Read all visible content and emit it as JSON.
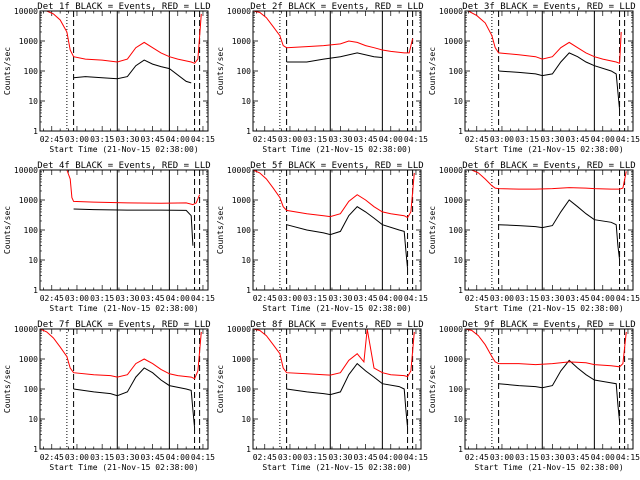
{
  "figure": {
    "xlabel": "Start Time (21-Nov-15 02:38:00)",
    "ylabel": "Counts/sec",
    "x_tick_labels": [
      "02:45",
      "03:00",
      "03:15",
      "03:30",
      "03:45",
      "04:00",
      "04:15"
    ],
    "y_tick_labels": [
      "1",
      "10",
      "100",
      "1000",
      "10000"
    ],
    "colors": {
      "events": "#000000",
      "lld": "#ff0000",
      "axes": "#000000",
      "background": "#ffffff"
    }
  },
  "chart_data": [
    {
      "type": "line",
      "title": "Det 1f BLACK = Events, RED = LLD",
      "xlabel": "Start Time (21-Nov-15 02:38:00)",
      "ylabel": "Counts/sec",
      "x_range": [
        "02:38",
        "04:18"
      ],
      "ylim": [
        1,
        10000
      ],
      "y_scale": "log",
      "vlines": {
        "dotted": [
          "02:54"
        ],
        "dashed": [
          "02:58",
          "04:10",
          "04:13"
        ],
        "solid": [
          "03:24",
          "03:55"
        ]
      },
      "series": [
        {
          "name": "BLACK = Events",
          "color": "#000000",
          "x": [
            "02:58",
            "03:05",
            "03:15",
            "03:24",
            "03:30",
            "03:35",
            "03:40",
            "03:45",
            "03:50",
            "03:55",
            "04:05",
            "04:08"
          ],
          "y": [
            60,
            65,
            60,
            55,
            65,
            150,
            230,
            170,
            140,
            120,
            45,
            40
          ]
        },
        {
          "name": "RED = LLD",
          "color": "#ff0000",
          "x": [
            "02:38",
            "02:42",
            "02:46",
            "02:50",
            "02:54",
            "02:56",
            "02:58",
            "03:05",
            "03:15",
            "03:24",
            "03:30",
            "03:35",
            "03:40",
            "03:45",
            "03:50",
            "03:55",
            "04:00",
            "04:08",
            "04:10",
            "04:12",
            "04:14"
          ],
          "y": [
            10000,
            10000,
            8000,
            5000,
            2000,
            500,
            300,
            250,
            230,
            200,
            250,
            600,
            900,
            600,
            400,
            300,
            250,
            200,
            180,
            250,
            8000
          ]
        }
      ]
    },
    {
      "type": "line",
      "title": "Det 2f BLACK = Events, RED = LLD",
      "xlabel": "Start Time (21-Nov-15 02:38:00)",
      "ylabel": "Counts/sec",
      "x_range": [
        "02:38",
        "04:18"
      ],
      "ylim": [
        1,
        10000
      ],
      "y_scale": "log",
      "vlines": {
        "dotted": [
          "02:54"
        ],
        "dashed": [
          "02:58",
          "04:10",
          "04:13"
        ],
        "solid": [
          "03:24",
          "03:55"
        ]
      },
      "series": [
        {
          "name": "BLACK = Events",
          "color": "#000000",
          "x": [
            "02:58",
            "03:10",
            "03:20",
            "03:30",
            "03:40",
            "03:50",
            "03:55"
          ],
          "y": [
            200,
            200,
            250,
            300,
            400,
            300,
            280
          ]
        },
        {
          "name": "RED = LLD",
          "color": "#ff0000",
          "x": [
            "02:38",
            "02:42",
            "02:46",
            "02:50",
            "02:54",
            "02:56",
            "02:58",
            "03:10",
            "03:20",
            "03:30",
            "03:35",
            "03:40",
            "03:45",
            "03:50",
            "03:55",
            "04:00",
            "04:08",
            "04:11",
            "04:13"
          ],
          "y": [
            10000,
            9000,
            6000,
            3000,
            1500,
            700,
            600,
            650,
            700,
            800,
            1000,
            900,
            700,
            600,
            500,
            450,
            400,
            400,
            1200
          ]
        }
      ]
    },
    {
      "type": "line",
      "title": "Det 3f BLACK = Events, RED = LLD",
      "xlabel": "Start Time (21-Nov-15 02:38:00)",
      "ylabel": "Counts/sec",
      "x_range": [
        "02:38",
        "04:18"
      ],
      "ylim": [
        1,
        10000
      ],
      "y_scale": "log",
      "vlines": {
        "dotted": [
          "02:54"
        ],
        "dashed": [
          "02:58",
          "04:10",
          "04:13"
        ],
        "solid": [
          "03:24",
          "03:55"
        ]
      },
      "series": [
        {
          "name": "BLACK = Events",
          "color": "#000000",
          "x": [
            "02:58",
            "03:10",
            "03:20",
            "03:24",
            "03:30",
            "03:35",
            "03:40",
            "03:45",
            "03:50",
            "03:55",
            "04:05",
            "04:08",
            "04:09",
            "04:10"
          ],
          "y": [
            100,
            90,
            80,
            70,
            80,
            200,
            400,
            300,
            200,
            150,
            100,
            80,
            20,
            5
          ]
        },
        {
          "name": "RED = LLD",
          "color": "#ff0000",
          "x": [
            "02:38",
            "02:40",
            "02:45",
            "02:50",
            "02:54",
            "02:56",
            "02:58",
            "03:10",
            "03:20",
            "03:24",
            "03:30",
            "03:35",
            "03:40",
            "03:45",
            "03:50",
            "03:55",
            "04:00",
            "04:08",
            "04:10",
            "04:11"
          ],
          "y": [
            10000,
            10000,
            7000,
            4000,
            1500,
            600,
            400,
            350,
            300,
            250,
            300,
            600,
            900,
            600,
            400,
            300,
            250,
            200,
            180,
            2000
          ]
        }
      ]
    },
    {
      "type": "line",
      "title": "Det 4f BLACK = Events, RED = LLD",
      "xlabel": "Start Time (21-Nov-15 02:38:00)",
      "ylabel": "Counts/sec",
      "x_range": [
        "02:38",
        "04:18"
      ],
      "ylim": [
        1,
        10000
      ],
      "y_scale": "log",
      "vlines": {
        "dotted": [],
        "dashed": [
          "04:10",
          "04:13"
        ],
        "solid": [
          "03:24",
          "03:55"
        ]
      },
      "series": [
        {
          "name": "BLACK = Events",
          "color": "#000000",
          "x": [
            "02:58",
            "03:10",
            "03:30",
            "03:50",
            "04:05",
            "04:08",
            "04:09"
          ],
          "y": [
            500,
            480,
            460,
            460,
            450,
            300,
            30
          ]
        },
        {
          "name": "RED = LLD",
          "color": "#ff0000",
          "x": [
            "02:54",
            "02:56",
            "02:57",
            "02:58",
            "03:10",
            "03:30",
            "03:50",
            "04:05",
            "04:09",
            "04:11",
            "04:13"
          ],
          "y": [
            10000,
            5000,
            1200,
            900,
            850,
            800,
            780,
            800,
            700,
            800,
            1500
          ]
        }
      ]
    },
    {
      "type": "line",
      "title": "Det 5f BLACK = Events, RED = LLD",
      "xlabel": "Start Time (21-Nov-15 02:38:00)",
      "ylabel": "Counts/sec",
      "x_range": [
        "02:38",
        "04:18"
      ],
      "ylim": [
        1,
        10000
      ],
      "y_scale": "log",
      "vlines": {
        "dotted": [
          "02:54"
        ],
        "dashed": [
          "02:58",
          "04:10",
          "04:13"
        ],
        "solid": [
          "03:24",
          "03:55"
        ]
      },
      "series": [
        {
          "name": "BLACK = Events",
          "color": "#000000",
          "x": [
            "02:58",
            "03:10",
            "03:20",
            "03:24",
            "03:30",
            "03:35",
            "03:40",
            "03:45",
            "03:50",
            "03:55",
            "04:05",
            "04:08",
            "04:09",
            "04:10"
          ],
          "y": [
            150,
            100,
            80,
            70,
            90,
            300,
            600,
            400,
            250,
            150,
            100,
            90,
            20,
            5
          ]
        },
        {
          "name": "RED = LLD",
          "color": "#ff0000",
          "x": [
            "02:38",
            "02:42",
            "02:46",
            "02:50",
            "02:54",
            "02:56",
            "02:58",
            "03:10",
            "03:20",
            "03:24",
            "03:30",
            "03:35",
            "03:40",
            "03:45",
            "03:50",
            "03:55",
            "04:00",
            "04:08",
            "04:10",
            "04:12",
            "04:14"
          ],
          "y": [
            10000,
            8000,
            5000,
            2500,
            1200,
            600,
            450,
            350,
            300,
            280,
            350,
            900,
            1500,
            1000,
            600,
            400,
            350,
            300,
            260,
            400,
            8000
          ]
        }
      ]
    },
    {
      "type": "line",
      "title": "Det 6f BLACK = Events, RED = LLD",
      "xlabel": "Start Time (21-Nov-15 02:38:00)",
      "ylabel": "Counts/sec",
      "x_range": [
        "02:38",
        "04:18"
      ],
      "ylim": [
        1,
        10000
      ],
      "y_scale": "log",
      "vlines": {
        "dotted": [
          "02:54"
        ],
        "dashed": [
          "02:58",
          "04:10",
          "04:13"
        ],
        "solid": [
          "03:24",
          "03:55"
        ]
      },
      "series": [
        {
          "name": "BLACK = Events",
          "color": "#000000",
          "x": [
            "02:58",
            "03:10",
            "03:20",
            "03:24",
            "03:30",
            "03:35",
            "03:40",
            "03:45",
            "03:50",
            "03:55",
            "04:05",
            "04:08",
            "04:09",
            "04:10"
          ],
          "y": [
            150,
            140,
            130,
            120,
            140,
            400,
            1000,
            600,
            350,
            220,
            180,
            150,
            30,
            10
          ]
        },
        {
          "name": "RED = LLD",
          "color": "#ff0000",
          "x": [
            "02:38",
            "02:42",
            "02:46",
            "02:50",
            "02:54",
            "02:56",
            "02:58",
            "03:10",
            "03:20",
            "03:30",
            "03:40",
            "03:50",
            "03:55",
            "04:05",
            "04:10",
            "04:12",
            "04:14"
          ],
          "y": [
            10000,
            10000,
            8000,
            5000,
            3000,
            2500,
            2400,
            2300,
            2300,
            2400,
            2600,
            2500,
            2400,
            2300,
            2300,
            2500,
            9000
          ]
        }
      ]
    },
    {
      "type": "line",
      "title": "Det 7f BLACK = Events, RED = LLD",
      "xlabel": "Start Time (21-Nov-15 02:38:00)",
      "ylabel": "Counts/sec",
      "x_range": [
        "02:38",
        "04:18"
      ],
      "ylim": [
        1,
        10000
      ],
      "y_scale": "log",
      "vlines": {
        "dotted": [
          "02:54"
        ],
        "dashed": [
          "02:58",
          "04:10",
          "04:13"
        ],
        "solid": [
          "03:24",
          "03:55"
        ]
      },
      "series": [
        {
          "name": "BLACK = Events",
          "color": "#000000",
          "x": [
            "02:58",
            "03:10",
            "03:20",
            "03:24",
            "03:30",
            "03:35",
            "03:40",
            "03:45",
            "03:50",
            "03:55",
            "04:05",
            "04:08",
            "04:09",
            "04:10"
          ],
          "y": [
            100,
            80,
            70,
            60,
            80,
            250,
            500,
            350,
            200,
            130,
            100,
            90,
            20,
            5
          ]
        },
        {
          "name": "RED = LLD",
          "color": "#ff0000",
          "x": [
            "02:38",
            "02:42",
            "02:46",
            "02:50",
            "02:54",
            "02:56",
            "02:58",
            "03:10",
            "03:20",
            "03:24",
            "03:30",
            "03:35",
            "03:40",
            "03:45",
            "03:50",
            "03:55",
            "04:00",
            "04:08",
            "04:10",
            "04:12",
            "04:14"
          ],
          "y": [
            10000,
            8000,
            5000,
            2500,
            1200,
            500,
            350,
            300,
            280,
            250,
            300,
            700,
            1000,
            700,
            450,
            320,
            280,
            250,
            220,
            400,
            8000
          ]
        }
      ]
    },
    {
      "type": "line",
      "title": "Det 8f BLACK = Events, RED = LLD",
      "xlabel": "Start Time (21-Nov-15 02:38:00)",
      "ylabel": "Counts/sec",
      "x_range": [
        "02:38",
        "04:18"
      ],
      "ylim": [
        1,
        10000
      ],
      "y_scale": "log",
      "vlines": {
        "dotted": [
          "02:54"
        ],
        "dashed": [
          "02:58",
          "04:10",
          "04:13"
        ],
        "solid": [
          "03:24",
          "03:55"
        ]
      },
      "series": [
        {
          "name": "BLACK = Events",
          "color": "#000000",
          "x": [
            "02:58",
            "03:10",
            "03:20",
            "03:24",
            "03:30",
            "03:35",
            "03:40",
            "03:45",
            "03:50",
            "03:55",
            "04:05",
            "04:08",
            "04:09",
            "04:10"
          ],
          "y": [
            100,
            80,
            70,
            65,
            80,
            300,
            700,
            400,
            250,
            150,
            120,
            100,
            20,
            5
          ]
        },
        {
          "name": "RED = LLD",
          "color": "#ff0000",
          "x": [
            "02:38",
            "02:42",
            "02:46",
            "02:50",
            "02:54",
            "02:56",
            "02:58",
            "03:10",
            "03:20",
            "03:24",
            "03:30",
            "03:35",
            "03:40",
            "03:44",
            "03:46",
            "03:50",
            "03:55",
            "04:00",
            "04:08",
            "04:10",
            "04:12",
            "04:14"
          ],
          "y": [
            10000,
            9000,
            6000,
            3000,
            1500,
            500,
            350,
            320,
            300,
            290,
            350,
            900,
            1500,
            800,
            10000,
            500,
            350,
            300,
            280,
            260,
            400,
            8000
          ]
        }
      ]
    },
    {
      "type": "line",
      "title": "Det 9f BLACK = Events, RED = LLD",
      "xlabel": "Start Time (21-Nov-15 02:38:00)",
      "ylabel": "Counts/sec",
      "x_range": [
        "02:38",
        "04:18"
      ],
      "ylim": [
        1,
        10000
      ],
      "y_scale": "log",
      "vlines": {
        "dotted": [
          "02:54"
        ],
        "dashed": [
          "02:58",
          "04:10",
          "04:13"
        ],
        "solid": [
          "03:24",
          "03:55"
        ]
      },
      "series": [
        {
          "name": "BLACK = Events",
          "color": "#000000",
          "x": [
            "02:58",
            "03:10",
            "03:20",
            "03:24",
            "03:30",
            "03:35",
            "03:40",
            "03:45",
            "03:50",
            "03:55",
            "04:05",
            "04:08",
            "04:09",
            "04:10"
          ],
          "y": [
            150,
            130,
            120,
            110,
            130,
            400,
            900,
            500,
            300,
            200,
            160,
            150,
            30,
            8
          ]
        },
        {
          "name": "RED = LLD",
          "color": "#ff0000",
          "x": [
            "02:38",
            "02:42",
            "02:46",
            "02:50",
            "02:54",
            "02:56",
            "02:58",
            "03:10",
            "03:20",
            "03:30",
            "03:40",
            "03:50",
            "03:55",
            "04:05",
            "04:10",
            "04:12",
            "04:14"
          ],
          "y": [
            10000,
            9000,
            6000,
            3000,
            1200,
            800,
            700,
            700,
            650,
            700,
            800,
            750,
            650,
            600,
            550,
            700,
            8000
          ]
        }
      ]
    }
  ]
}
